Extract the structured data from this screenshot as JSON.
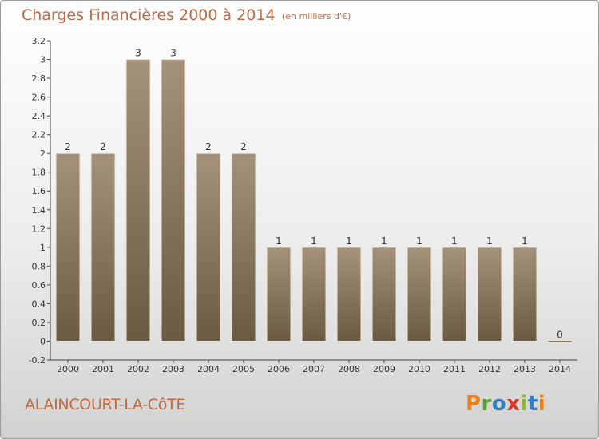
{
  "header": {
    "title": "Charges Financières 2000 à 2014",
    "subtitle": "(en milliers d'€)"
  },
  "footer": {
    "commune": "ALAINCOURT-LA-CôTE",
    "logo_text": "Proxiti",
    "logo_colors": [
      "#e8821e",
      "#5aa02c",
      "#2f7fc1",
      "#d93a2b",
      "#8fb92b",
      "#2f7fc1",
      "#e8821e"
    ]
  },
  "colors": {
    "bar_top": "#a4937a",
    "bar_bottom": "#6b5a42",
    "bar_edge": "#efe6d6",
    "axis": "#444444",
    "grid": "#cfcfcf",
    "title": "#c06a42"
  },
  "chart_data": {
    "type": "bar",
    "title": "Charges Financières 2000 à 2014",
    "subtitle": "(en milliers d'€)",
    "categories": [
      "2000",
      "2001",
      "2002",
      "2003",
      "2004",
      "2005",
      "2006",
      "2007",
      "2008",
      "2009",
      "2010",
      "2011",
      "2012",
      "2013",
      "2014"
    ],
    "values": [
      2,
      2,
      3,
      3,
      2,
      2,
      1,
      1,
      1,
      1,
      1,
      1,
      1,
      1,
      0
    ],
    "labels": [
      "2",
      "2",
      "3",
      "3",
      "2",
      "2",
      "1",
      "1",
      "1",
      "1",
      "1",
      "1",
      "1",
      "1",
      "0"
    ],
    "ylim": [
      -0.2,
      3.2
    ],
    "yticks": [
      -0.2,
      0,
      0.2,
      0.4,
      0.6,
      0.8,
      1,
      1.2,
      1.4,
      1.6,
      1.8,
      2,
      2.2,
      2.4,
      2.6,
      2.8,
      3,
      3.2
    ],
    "ytick_labels": [
      "-0.2",
      "0",
      "0.2",
      "0.4",
      "0.6",
      "0.8",
      "1",
      "1.2",
      "1.4",
      "1.6",
      "1.8",
      "2",
      "2.2",
      "2.4",
      "2.6",
      "2.8",
      "3",
      "3.2"
    ],
    "grid": false,
    "xlabel": "",
    "ylabel": ""
  }
}
